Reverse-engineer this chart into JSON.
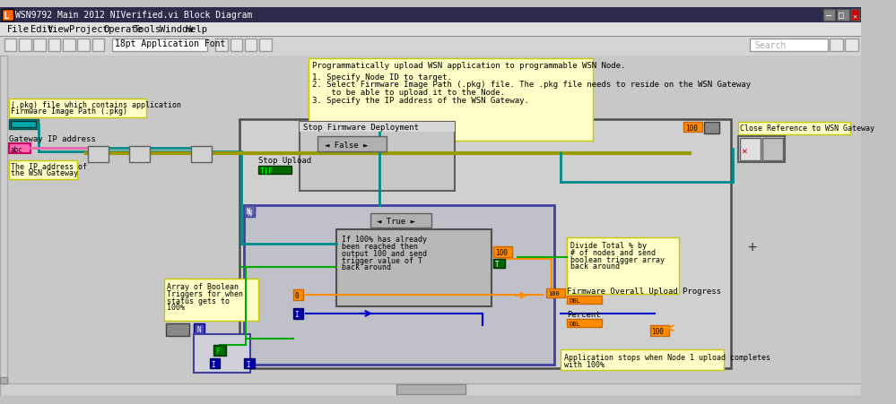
{
  "title_bar": "WSN9792 Main 2012 NIVerified.vi Block Diagram",
  "title_bar_bg": "#1a1a2e",
  "title_bar_fg": "#ffffff",
  "menu_items": [
    "File",
    "Edit",
    "View",
    "Project",
    "Operate",
    "Tools",
    "Window",
    "Help"
  ],
  "bg_color": "#c0c0c0",
  "canvas_bg": "#c8c8c8",
  "diagram_bg": "#d4d4d4",
  "note_bg": "#ffffc0",
  "note_border": "#a0a000",
  "note_text1": "Programmatically upload WSN application to programmable WSN Node.",
  "note_text2": "1. Specify Node ID to target.\n2. Select Firmware Image Path (.pkg) file. The .pkg file needs to reside on the WSN Gateway\n    to be able to upload it to the Node.\n3. Specify the IP address of the WSN Gateway.",
  "label_pkg": "(.pkg) file which contains application\nFirmware Image Path (.pkg)",
  "label_gateway": "Gateway IP address",
  "label_ip": "The IP address of\nthe WSN Gateway",
  "label_stop_firmware": "Stop Firmware Deployment",
  "label_false": "False",
  "label_stop_upload": "Stop Upload",
  "label_true": "True",
  "label_if100": "If 100% has already\nbeen reached then\noutput 100 and send\ntrigger value of T\nback around",
  "label_array": "Array of Boolean\nTriggers for when\nstatus gets to\n100%",
  "label_divide": "Divide Total % by\n# of nodes and send\nboolean trigger array\nback around",
  "label_firmware_progress": "Firmware Overall Upload Progress",
  "label_percent": "Percent",
  "label_close": "Close Reference to WSN Gateway",
  "label_app_stops": "Application stops when Node 1 upload completes\nwith 100%",
  "teal": "#008080",
  "orange": "#ff8c00",
  "green": "#00aa00",
  "blue": "#0000cc",
  "pink": "#ff69b4",
  "yellow_green": "#8b8b00",
  "gray_dark": "#404040",
  "gray_med": "#808080",
  "gray_light": "#b0b0b0",
  "frame_bg": "#d8d8d8",
  "inner_frame_bg": "#c0c0c0"
}
